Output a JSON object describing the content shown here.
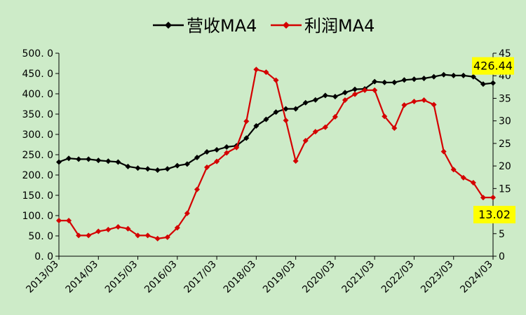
{
  "chart_data": {
    "type": "line",
    "x": [
      "2013/03",
      "2013/06",
      "2013/09",
      "2013/12",
      "2014/03",
      "2014/06",
      "2014/09",
      "2014/12",
      "2015/03",
      "2015/06",
      "2015/09",
      "2015/12",
      "2016/03",
      "2016/06",
      "2016/09",
      "2016/12",
      "2017/03",
      "2017/06",
      "2017/09",
      "2017/12",
      "2018/03",
      "2018/06",
      "2018/09",
      "2018/12",
      "2019/03",
      "2019/06",
      "2019/09",
      "2019/12",
      "2020/03",
      "2020/06",
      "2020/09",
      "2020/12",
      "2021/03",
      "2021/06",
      "2021/09",
      "2021/12",
      "2022/03",
      "2022/06",
      "2022/09",
      "2022/12",
      "2023/03",
      "2023/06",
      "2023/09",
      "2023/12",
      "2024/03"
    ],
    "x_tick_labels": [
      "2013/03",
      "2014/03",
      "2015/03",
      "2016/03",
      "2017/03",
      "2018/03",
      "2019/03",
      "2020/03",
      "2021/03",
      "2022/03",
      "2023/03",
      "2024/03"
    ],
    "y_left": {
      "ylim": [
        0,
        500
      ],
      "ticks": [
        "0. 0",
        "50. 0",
        "100. 0",
        "150. 0",
        "200. 0",
        "250. 0",
        "300. 0",
        "350. 0",
        "400. 0",
        "450. 0",
        "500. 0"
      ]
    },
    "y_right": {
      "ylim": [
        0,
        45
      ],
      "ticks": [
        "0",
        "5",
        "10",
        "15",
        "20",
        "25",
        "30",
        "35",
        "40",
        "45"
      ]
    },
    "series": [
      {
        "name": "营收MA4",
        "axis": "left",
        "color": "#000000",
        "values": [
          232,
          241,
          239,
          239,
          236,
          234,
          232,
          221,
          217,
          215,
          212,
          215,
          223,
          227,
          243,
          257,
          262,
          269,
          272,
          291,
          321,
          337,
          355,
          363,
          363,
          378,
          385,
          396,
          393,
          403,
          411,
          412,
          430,
          428,
          428,
          434,
          436,
          438,
          442,
          447,
          445,
          445,
          442,
          424,
          426.44
        ]
      },
      {
        "name": "利润MA4",
        "axis": "right",
        "color": "#d40000",
        "values": [
          7.9,
          7.9,
          4.6,
          4.6,
          5.5,
          5.9,
          6.5,
          6.1,
          4.6,
          4.6,
          3.9,
          4.2,
          6.3,
          9.5,
          14.8,
          19.7,
          21.0,
          22.9,
          24.1,
          29.9,
          41.4,
          40.8,
          39.0,
          30.1,
          21.1,
          25.6,
          27.6,
          28.6,
          30.9,
          34.6,
          35.9,
          36.8,
          36.8,
          31.0,
          28.4,
          33.5,
          34.3,
          34.6,
          33.6,
          23.2,
          19.2,
          17.4,
          16.3,
          13.0,
          13.02
        ]
      }
    ],
    "callouts": [
      {
        "series": "营收MA4",
        "text": "426.44"
      },
      {
        "series": "利润MA4",
        "text": "13.02"
      }
    ],
    "legend_position": "top-center",
    "grid": false
  }
}
